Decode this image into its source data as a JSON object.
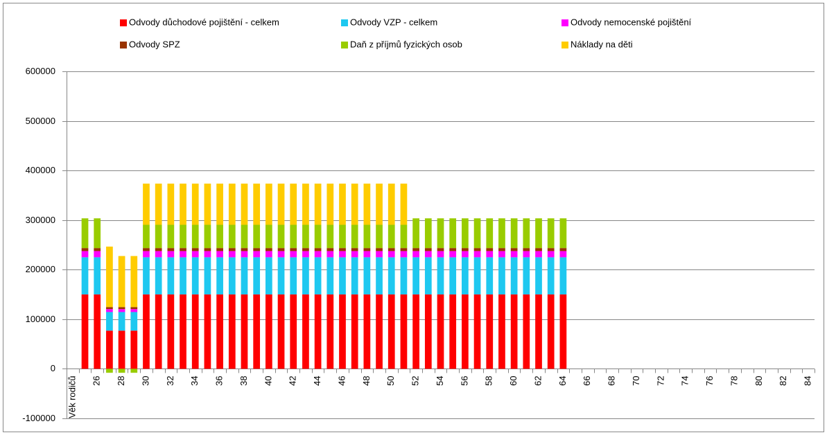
{
  "chart_data": {
    "type": "stacked_bar",
    "categories": [
      "Věk rodičů",
      null,
      "26",
      null,
      "28",
      null,
      "30",
      null,
      "32",
      null,
      "34",
      null,
      "36",
      null,
      "38",
      null,
      "40",
      null,
      "42",
      null,
      "44",
      null,
      "46",
      null,
      "48",
      null,
      "50",
      null,
      "52",
      null,
      "54",
      null,
      "56",
      null,
      "58",
      null,
      "60",
      null,
      "62",
      null,
      "64",
      null,
      "66",
      null,
      "68",
      null,
      "70",
      null,
      "72",
      null,
      "74",
      null,
      "76",
      null,
      "78",
      null,
      "80",
      null,
      "82",
      null,
      "84"
    ],
    "series": [
      {
        "name": "Odvody důchodové pojištění - celkem",
        "color": "#ff0000",
        "values": [
          null,
          150000,
          150000,
          77000,
          77000,
          77000,
          150000,
          150000,
          150000,
          150000,
          150000,
          150000,
          150000,
          150000,
          150000,
          150000,
          150000,
          150000,
          150000,
          150000,
          150000,
          150000,
          150000,
          150000,
          150000,
          150000,
          150000,
          150000,
          150000,
          150000,
          150000,
          150000,
          150000,
          150000,
          150000,
          150000,
          150000,
          150000,
          150000,
          150000,
          150000,
          0,
          0,
          0,
          0,
          0,
          0,
          0,
          0,
          0,
          0,
          0,
          0,
          0,
          0,
          0,
          0,
          0,
          0,
          0,
          0
        ]
      },
      {
        "name": "Odvody VZP - celkem",
        "color": "#1ec8f0",
        "values": [
          null,
          75000,
          75000,
          37500,
          37500,
          37500,
          75000,
          75000,
          75000,
          75000,
          75000,
          75000,
          75000,
          75000,
          75000,
          75000,
          75000,
          75000,
          75000,
          75000,
          75000,
          75000,
          75000,
          75000,
          75000,
          75000,
          75000,
          75000,
          75000,
          75000,
          75000,
          75000,
          75000,
          75000,
          75000,
          75000,
          75000,
          75000,
          75000,
          75000,
          75000,
          0,
          0,
          0,
          0,
          0,
          0,
          0,
          0,
          0,
          0,
          0,
          0,
          0,
          0,
          0,
          0,
          0,
          0,
          0,
          0
        ]
      },
      {
        "name": "Odvody nemocenské pojištění",
        "color": "#ff00ff",
        "values": [
          null,
          12500,
          12500,
          6000,
          6000,
          6000,
          12500,
          12500,
          12500,
          12500,
          12500,
          12500,
          12500,
          12500,
          12500,
          12500,
          12500,
          12500,
          12500,
          12500,
          12500,
          12500,
          12500,
          12500,
          12500,
          12500,
          12500,
          12500,
          12500,
          12500,
          12500,
          12500,
          12500,
          12500,
          12500,
          12500,
          12500,
          12500,
          12500,
          12500,
          12500,
          0,
          0,
          0,
          0,
          0,
          0,
          0,
          0,
          0,
          0,
          0,
          0,
          0,
          0,
          0,
          0,
          0,
          0,
          0,
          0
        ]
      },
      {
        "name": "Odvody SPZ",
        "color": "#993300",
        "values": [
          null,
          6000,
          6000,
          4000,
          4000,
          4000,
          6000,
          6000,
          6000,
          6000,
          6000,
          6000,
          6000,
          6000,
          6000,
          6000,
          6000,
          6000,
          6000,
          6000,
          6000,
          6000,
          6000,
          6000,
          6000,
          6000,
          6000,
          6000,
          6000,
          6000,
          6000,
          6000,
          6000,
          6000,
          6000,
          6000,
          6000,
          6000,
          6000,
          6000,
          6000,
          0,
          0,
          0,
          0,
          0,
          0,
          0,
          0,
          0,
          0,
          0,
          0,
          0,
          0,
          0,
          0,
          0,
          0,
          0,
          0
        ]
      },
      {
        "name": "Daň z příjmů fyzických osob",
        "color": "#99cc00",
        "values": [
          null,
          60000,
          60000,
          -8000,
          -8000,
          -8000,
          47000,
          47000,
          47000,
          47000,
          47000,
          47000,
          47000,
          47000,
          47000,
          47000,
          47000,
          47000,
          47000,
          47000,
          47000,
          47000,
          47000,
          47000,
          47000,
          47000,
          47000,
          47000,
          60000,
          60000,
          60000,
          60000,
          60000,
          60000,
          60000,
          60000,
          60000,
          60000,
          60000,
          60000,
          60000,
          0,
          0,
          0,
          0,
          0,
          0,
          0,
          0,
          0,
          0,
          0,
          0,
          0,
          0,
          0,
          0,
          0,
          0,
          0,
          0
        ]
      },
      {
        "name": "Náklady na děti",
        "color": "#ffcc00",
        "values": [
          null,
          0,
          0,
          122000,
          103000,
          103000,
          83000,
          83000,
          83000,
          83000,
          83000,
          83000,
          83000,
          83000,
          83000,
          83000,
          83000,
          83000,
          83000,
          83000,
          83000,
          83000,
          83000,
          83000,
          83000,
          83000,
          83000,
          83000,
          0,
          0,
          0,
          0,
          0,
          0,
          0,
          0,
          0,
          0,
          0,
          0,
          0,
          0,
          0,
          0,
          0,
          0,
          0,
          0,
          0,
          0,
          0,
          0,
          0,
          0,
          0,
          0,
          0,
          0,
          0,
          0,
          0
        ]
      }
    ],
    "ylim": [
      -100000,
      600000
    ],
    "yticks": [
      -100000,
      0,
      100000,
      200000,
      300000,
      400000,
      500000,
      600000
    ],
    "grid": true
  }
}
